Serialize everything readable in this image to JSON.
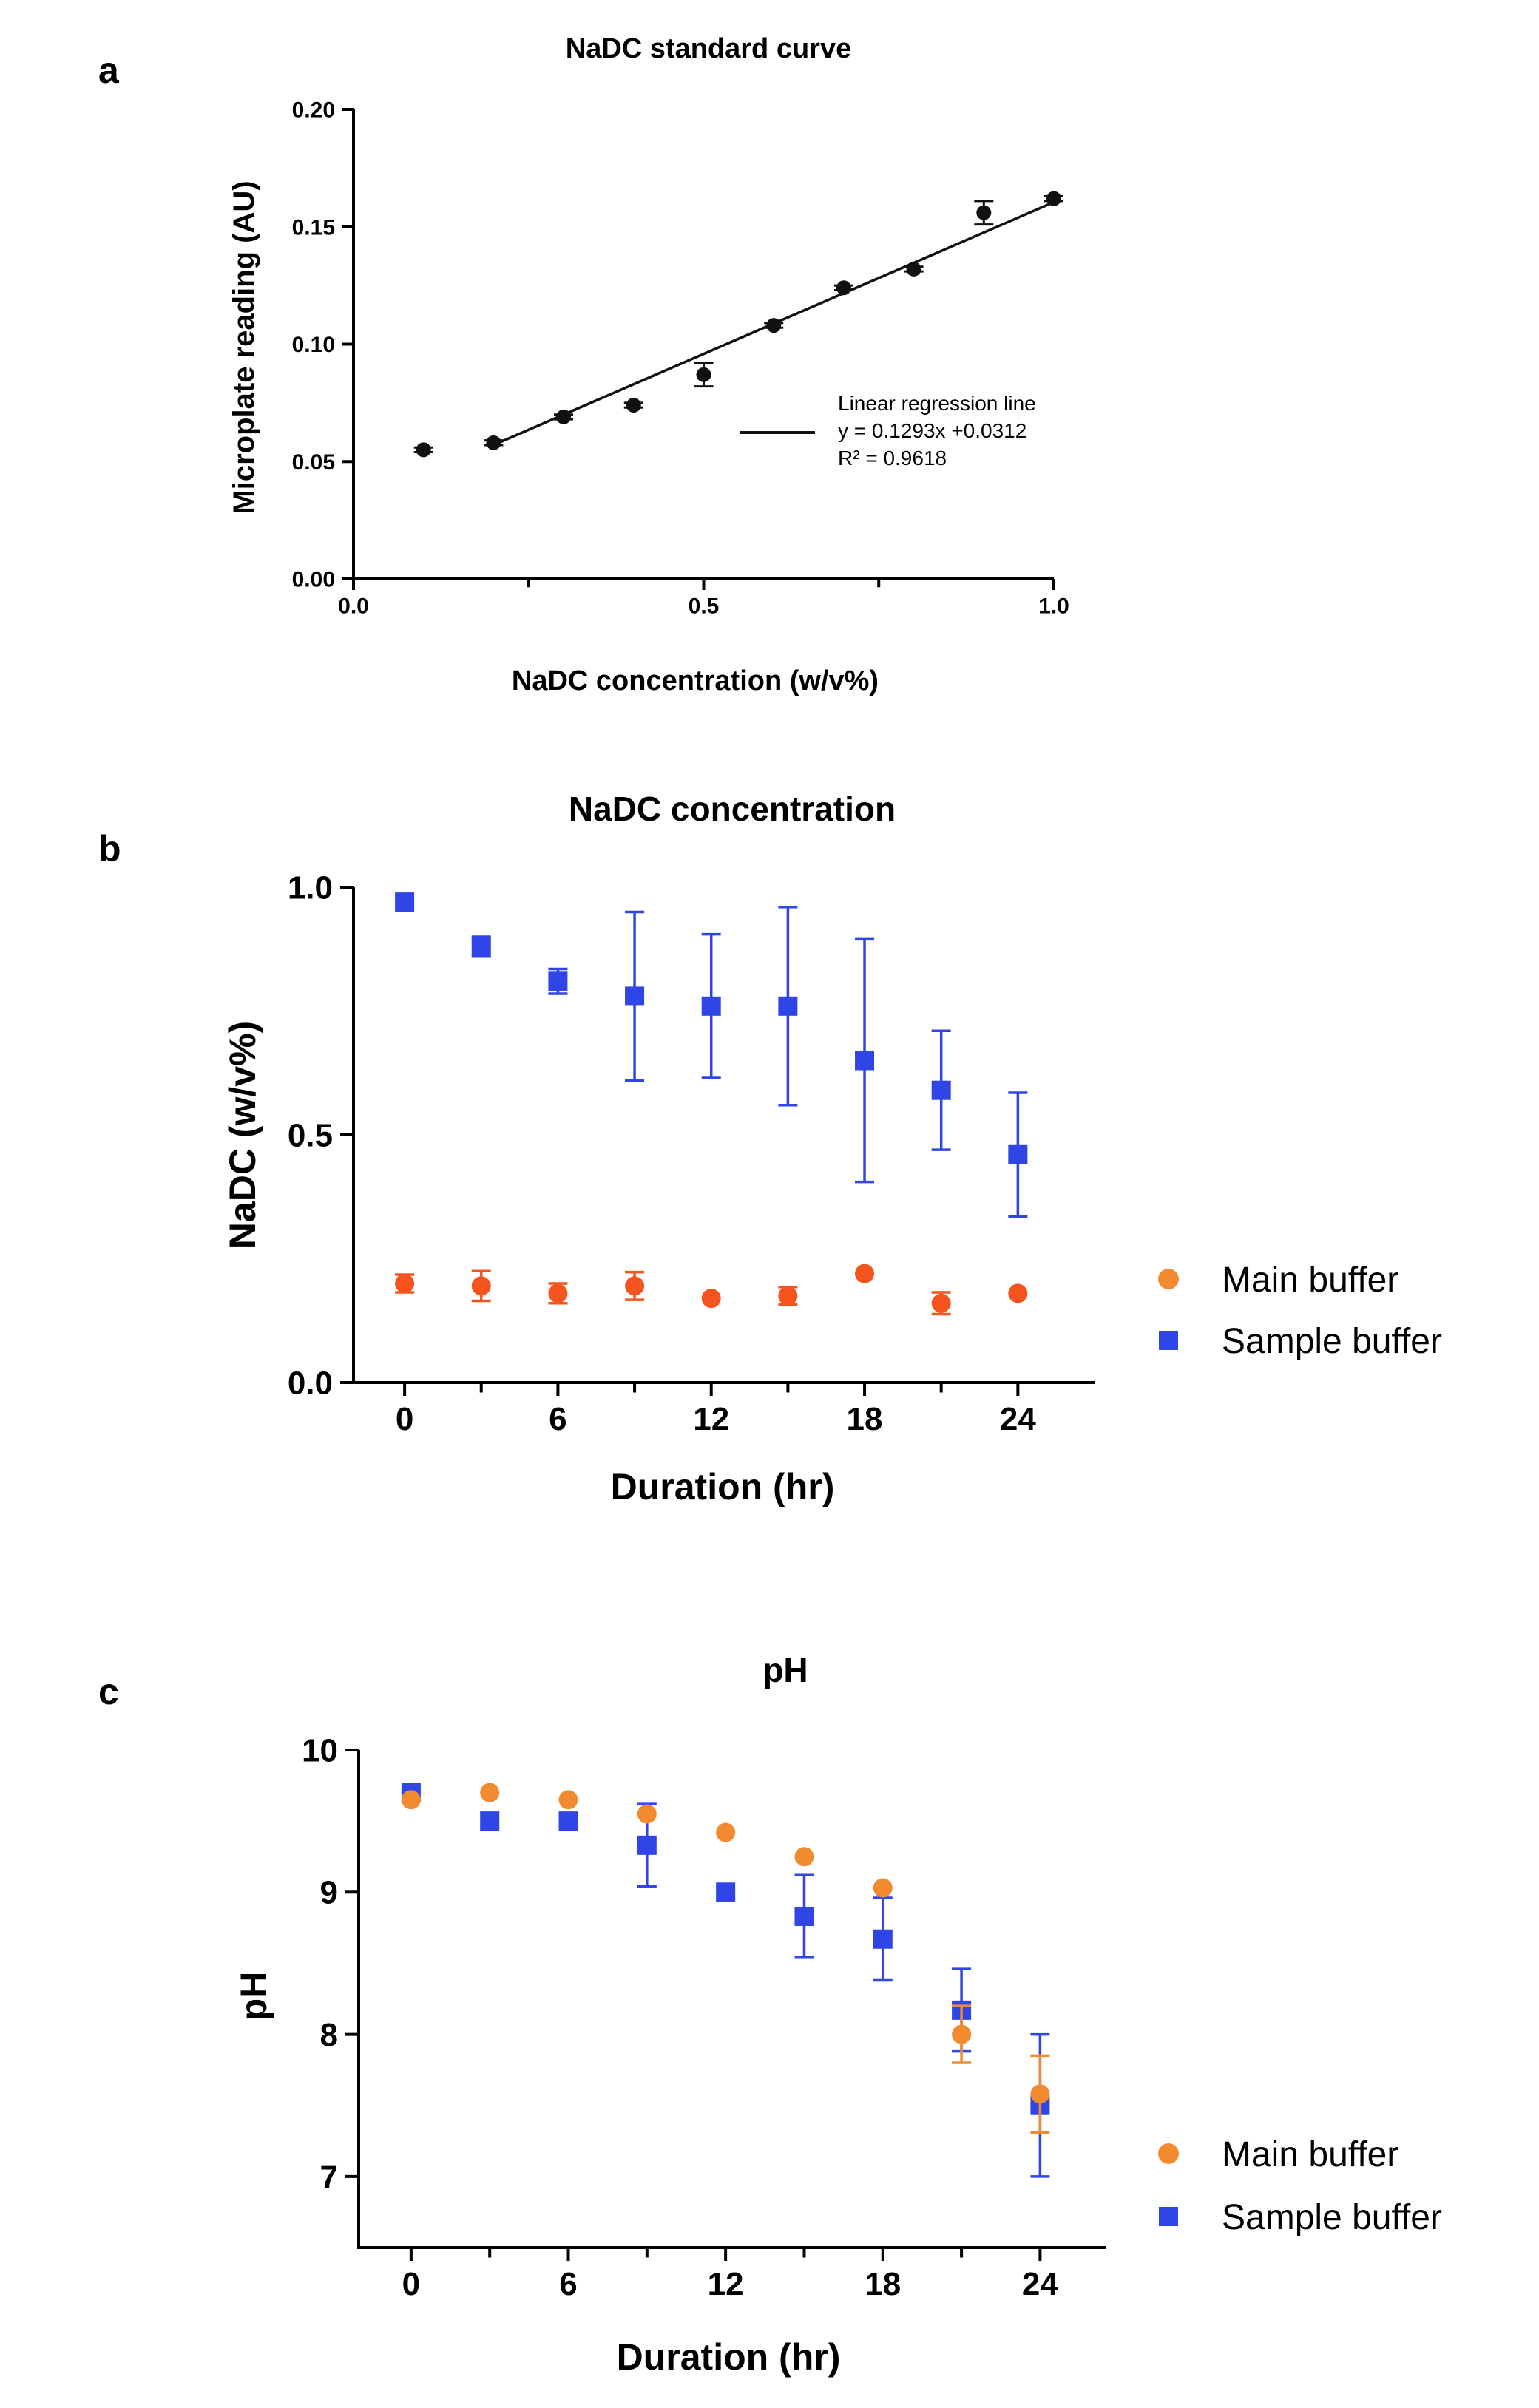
{
  "chart_data": [
    {
      "panel": "a",
      "type": "scatter",
      "title": "NaDC standard curve",
      "xlabel": "NaDC concentration (w/v%)",
      "ylabel": "Microplate reading (AU)",
      "xlim": [
        0,
        1.0
      ],
      "ylim": [
        0,
        0.2
      ],
      "xticks": [
        "0.0",
        "0.5",
        "1.0"
      ],
      "yticks": [
        "0.00",
        "0.05",
        "0.10",
        "0.15",
        "0.20"
      ],
      "series": [
        {
          "color": "#111111",
          "marker": "circle",
          "x": [
            0.1,
            0.2,
            0.3,
            0.4,
            0.5,
            0.6,
            0.7,
            0.8,
            0.9,
            1.0
          ],
          "y": [
            0.055,
            0.058,
            0.069,
            0.074,
            0.087,
            0.108,
            0.124,
            0.132,
            0.156,
            0.162
          ],
          "err": [
            0.001,
            0.001,
            0.001,
            0.001,
            0.005,
            0.001,
            0.001,
            0.001,
            0.005,
            0.001
          ]
        }
      ],
      "regression": {
        "slope": 0.1293,
        "intercept": 0.0312,
        "x_range": [
          0.2,
          1.0
        ]
      },
      "annotation": {
        "line1": "Linear regression line",
        "line2": "y = 0.1293x +0.0312",
        "line3": "R² = 0.9618"
      }
    },
    {
      "panel": "b",
      "type": "scatter",
      "title": "NaDC concentration",
      "xlabel": "Duration (hr)",
      "ylabel": "NaDC (w/v%)",
      "xlim": [
        -2,
        27
      ],
      "ylim": [
        0,
        1.0
      ],
      "xticks": [
        "0",
        "6",
        "12",
        "18",
        "24"
      ],
      "yticks": [
        "0.0",
        "0.5",
        "1.0"
      ],
      "legend_position": "right",
      "series": [
        {
          "name": "Main buffer",
          "color": "#f5541e",
          "legend_color": "#f28a30",
          "marker": "circle",
          "x": [
            0,
            3,
            6,
            9,
            12,
            15,
            18,
            21,
            24
          ],
          "y": [
            0.2,
            0.195,
            0.18,
            0.195,
            0.17,
            0.175,
            0.22,
            0.16,
            0.18
          ],
          "err": [
            0.018,
            0.03,
            0.02,
            0.028,
            0.0,
            0.018,
            0.0,
            0.022,
            0.0
          ]
        },
        {
          "name": "Sample buffer",
          "color": "#2f45e6",
          "marker": "square",
          "x": [
            0,
            3,
            6,
            9,
            12,
            15,
            18,
            21,
            24
          ],
          "y": [
            0.97,
            0.88,
            0.81,
            0.78,
            0.76,
            0.76,
            0.65,
            0.59,
            0.46
          ],
          "err": [
            0.0,
            0.02,
            0.025,
            0.17,
            0.145,
            0.2,
            0.245,
            0.12,
            0.125
          ]
        }
      ]
    },
    {
      "panel": "c",
      "type": "scatter",
      "title": "pH",
      "xlabel": "Duration (hr)",
      "ylabel": "pH",
      "xlim": [
        -2,
        26.5
      ],
      "ylim": [
        6.5,
        10
      ],
      "xticks": [
        "0",
        "6",
        "12",
        "18",
        "24"
      ],
      "yticks": [
        "7",
        "8",
        "9",
        "10"
      ],
      "legend_position": "right",
      "series": [
        {
          "name": "Sample buffer",
          "color": "#2f45e6",
          "marker": "square",
          "x": [
            0,
            3,
            6,
            9,
            12,
            15,
            18,
            21,
            24
          ],
          "y": [
            9.7,
            9.5,
            9.5,
            9.33,
            9.0,
            8.83,
            8.67,
            8.17,
            7.5
          ],
          "err": [
            0.0,
            0.0,
            0.0,
            0.29,
            0.0,
            0.29,
            0.29,
            0.29,
            0.5
          ]
        },
        {
          "name": "Main buffer",
          "color": "#f28a30",
          "marker": "circle",
          "x": [
            0,
            3,
            6,
            9,
            12,
            15,
            18,
            21,
            24
          ],
          "y": [
            9.65,
            9.7,
            9.65,
            9.55,
            9.42,
            9.25,
            9.03,
            8.0,
            7.58
          ],
          "err": [
            0.0,
            0.0,
            0.0,
            0.0,
            0.0,
            0.0,
            0.0,
            0.2,
            0.27
          ]
        }
      ]
    }
  ],
  "panel_labels": [
    "a",
    "b",
    "c"
  ]
}
